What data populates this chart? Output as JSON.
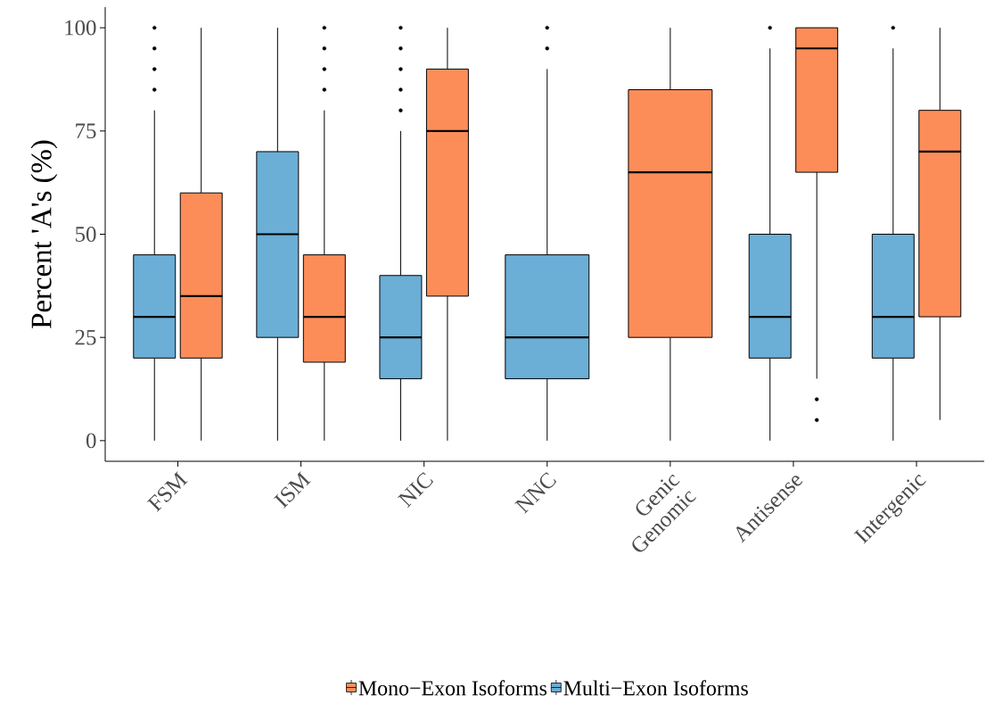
{
  "chart_data": {
    "type": "box",
    "ylabel": "Percent 'A's (%)",
    "categories": [
      "FSM",
      "ISM",
      "NIC",
      "NNC",
      "Genic Genomic",
      "Antisense",
      "Intergenic"
    ],
    "ylim": [
      -5,
      105
    ],
    "yticks": [
      0,
      25,
      50,
      75,
      100
    ],
    "legend": "bottom",
    "series": [
      {
        "name": "Multi−Exon Isoforms",
        "color": "#6baed6",
        "boxes": [
          {
            "low": 0,
            "q1": 20,
            "median": 30,
            "q3": 45,
            "high": 80,
            "outliers": [
              85,
              90,
              95,
              100
            ]
          },
          {
            "low": 0,
            "q1": 25,
            "median": 50,
            "q3": 70,
            "high": 100
          },
          {
            "low": 0,
            "q1": 15,
            "median": 25,
            "q3": 40,
            "high": 75,
            "outliers": [
              80,
              85,
              90,
              95,
              100
            ]
          },
          {
            "low": 0,
            "q1": 15,
            "median": 25,
            "q3": 45,
            "high": 90,
            "outliers": [
              95,
              100
            ]
          },
          null,
          {
            "low": 0,
            "q1": 20,
            "median": 30,
            "q3": 50,
            "high": 95,
            "outliers": [
              100
            ]
          },
          {
            "low": 0,
            "q1": 20,
            "median": 30,
            "q3": 50,
            "high": 95,
            "outliers": [
              100
            ]
          }
        ]
      },
      {
        "name": "Mono−Exon Isoforms",
        "color": "#fc8d59",
        "boxes": [
          {
            "low": 0,
            "q1": 20,
            "median": 35,
            "q3": 60,
            "high": 100
          },
          {
            "low": 0,
            "q1": 19,
            "median": 30,
            "q3": 45,
            "high": 80,
            "outliers": [
              85,
              90,
              95,
              100
            ]
          },
          {
            "low": 0,
            "q1": 35,
            "median": 75,
            "q3": 90,
            "high": 100
          },
          null,
          {
            "low": 0,
            "q1": 25,
            "median": 65,
            "q3": 85,
            "high": 100
          },
          {
            "low": 15,
            "q1": 65,
            "median": 95,
            "q3": 100,
            "high": 100,
            "outliers": [
              10,
              5
            ]
          },
          {
            "low": 5,
            "q1": 30,
            "median": 70,
            "q3": 80,
            "high": 100
          }
        ]
      }
    ]
  }
}
